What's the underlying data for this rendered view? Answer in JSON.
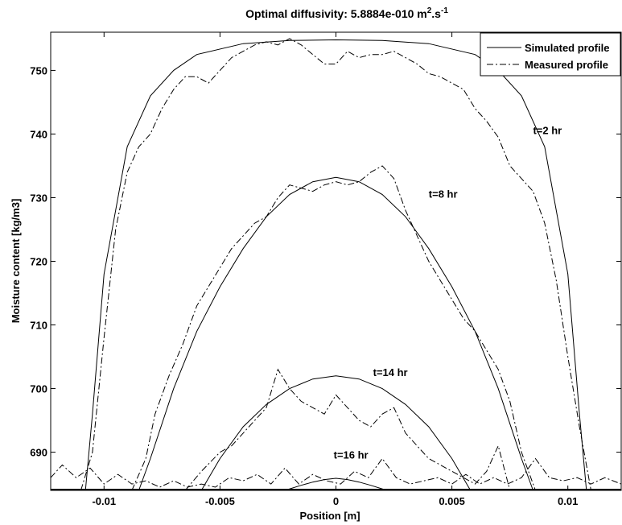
{
  "chart_data": {
    "type": "line",
    "title_prefix": "Optimal diffusivity: 5.8884e-010 m",
    "title_sup1": "2",
    "title_mid": ".s",
    "title_sup2": "-1",
    "xlabel": "Position [m]",
    "ylabel": "Moisture content [kg/m3]",
    "xlim": [
      -0.0123,
      0.0123
    ],
    "ylim": [
      684,
      756
    ],
    "xticks": [
      -0.01,
      -0.005,
      0,
      0.005,
      0.01
    ],
    "xtick_labels": [
      "-0.01",
      "-0.005",
      "0",
      "0.005",
      "0.01"
    ],
    "yticks": [
      690,
      700,
      710,
      720,
      730,
      740,
      750
    ],
    "ytick_labels": [
      "690",
      "700",
      "710",
      "720",
      "730",
      "740",
      "750"
    ],
    "grid": false,
    "legend_position": "top-right",
    "legend": [
      {
        "label": "Simulated profile",
        "style": "solid"
      },
      {
        "label": "Measured profile",
        "style": "dashdot"
      }
    ],
    "annotations": [
      {
        "text": "t=2 hr",
        "x": 0.0085,
        "y": 740
      },
      {
        "text": "t=8 hr",
        "x": 0.004,
        "y": 730
      },
      {
        "text": "t=14 hr",
        "x": 0.0016,
        "y": 702
      },
      {
        "text": "t=16 hr",
        "x": -0.0001,
        "y": 689
      }
    ],
    "series": [
      {
        "name": "Simulated profile",
        "style": "solid",
        "curves": [
          {
            "label": "t=2 hr",
            "x": [
              -0.0108,
              -0.0105,
              -0.01,
              -0.009,
              -0.008,
              -0.007,
              -0.006,
              -0.004,
              -0.002,
              0,
              0.002,
              0.004,
              0.006,
              0.007,
              0.008,
              0.009,
              0.01,
              0.0105,
              0.0108
            ],
            "y": [
              684,
              696,
              718,
              738,
              746,
              750,
              752.5,
              754.2,
              754.7,
              754.8,
              754.7,
              754.2,
              752.5,
              750,
              746,
              738,
              718,
              696,
              684
            ]
          },
          {
            "label": "t=8 hr",
            "x": [
              -0.0085,
              -0.008,
              -0.007,
              -0.006,
              -0.005,
              -0.004,
              -0.003,
              -0.002,
              -0.001,
              0,
              0.001,
              0.002,
              0.003,
              0.004,
              0.005,
              0.006,
              0.007,
              0.008,
              0.0085
            ],
            "y": [
              684,
              689,
              700,
              709,
              716,
              722,
              727,
              730.5,
              732.5,
              733.2,
              732.5,
              730.5,
              727,
              722,
              716,
              709,
              700,
              689,
              684
            ]
          },
          {
            "label": "t=14 hr",
            "x": [
              -0.0058,
              -0.005,
              -0.004,
              -0.003,
              -0.002,
              -0.001,
              0,
              0.001,
              0.002,
              0.003,
              0.004,
              0.005,
              0.0058
            ],
            "y": [
              684,
              689,
              694,
              697.5,
              700,
              701.5,
              702,
              701.5,
              700,
              697.5,
              694,
              689,
              684
            ]
          },
          {
            "label": "t=16 hr",
            "x": [
              -0.0022,
              -0.0015,
              -0.001,
              -0.0005,
              0,
              0.0005,
              0.001,
              0.0015,
              0.0022
            ],
            "y": [
              684,
              684.8,
              685.3,
              685.7,
              685.9,
              685.7,
              685.3,
              684.8,
              684
            ]
          }
        ]
      },
      {
        "name": "Measured profile",
        "style": "dashdot",
        "curves": [
          {
            "label": "t=2 hr",
            "x": [
              -0.011,
              -0.0105,
              -0.01,
              -0.0095,
              -0.009,
              -0.0085,
              -0.008,
              -0.0075,
              -0.007,
              -0.0065,
              -0.006,
              -0.0055,
              -0.005,
              -0.0045,
              -0.004,
              -0.0035,
              -0.003,
              -0.0025,
              -0.002,
              -0.0015,
              -0.001,
              -0.0005,
              0,
              0.0005,
              0.001,
              0.0015,
              0.002,
              0.0025,
              0.003,
              0.0035,
              0.004,
              0.0045,
              0.005,
              0.0055,
              0.006,
              0.0065,
              0.007,
              0.0075,
              0.008,
              0.0085,
              0.009,
              0.0095,
              0.01,
              0.0105,
              0.011
            ],
            "y": [
              684,
              690,
              708,
              725,
              734,
              738,
              740,
              744,
              747,
              749,
              749,
              748,
              750,
              752,
              753,
              754,
              754.5,
              754,
              755,
              754,
              752.5,
              751,
              751,
              753,
              752,
              752.5,
              752.5,
              753,
              752,
              751,
              749.5,
              749,
              748,
              747,
              744,
              742,
              739.5,
              735,
              733,
              731,
              726,
              717,
              705,
              694,
              684
            ]
          },
          {
            "label": "t=8 hr",
            "x": [
              -0.0088,
              -0.0082,
              -0.0078,
              -0.0072,
              -0.0066,
              -0.006,
              -0.0055,
              -0.005,
              -0.0045,
              -0.004,
              -0.0035,
              -0.003,
              -0.0025,
              -0.002,
              -0.0015,
              -0.001,
              -0.0005,
              0,
              0.0005,
              0.001,
              0.0015,
              0.002,
              0.0025,
              0.003,
              0.0035,
              0.004,
              0.0045,
              0.005,
              0.0055,
              0.006,
              0.0065,
              0.007,
              0.0075,
              0.008,
              0.0086
            ],
            "y": [
              684,
              689,
              696,
              702,
              707,
              713,
              716,
              719,
              722,
              724,
              726,
              727,
              730,
              732,
              731.5,
              731,
              732,
              732.5,
              732,
              732.5,
              734,
              735,
              733,
              728,
              724,
              720,
              717,
              714,
              711,
              709,
              706,
              703,
              698,
              690,
              684
            ]
          },
          {
            "label": "t=14 hr",
            "x": [
              -0.0065,
              -0.0058,
              -0.005,
              -0.0045,
              -0.004,
              -0.0035,
              -0.003,
              -0.0025,
              -0.002,
              -0.0015,
              -0.001,
              -0.0005,
              0,
              0.0005,
              0.001,
              0.0015,
              0.002,
              0.0025,
              0.003,
              0.0035,
              0.004,
              0.0045,
              0.005,
              0.0055,
              0.006,
              0.0065,
              0.007,
              0.0075
            ],
            "y": [
              684,
              687,
              690,
              691,
              693,
              695,
              697,
              703,
              700,
              698,
              697,
              696,
              699,
              697,
              695,
              694,
              696,
              697,
              693,
              691,
              689,
              688,
              687,
              686,
              685,
              687,
              691,
              684
            ]
          },
          {
            "label": "t=16 hr",
            "x": [
              -0.0123,
              -0.0118,
              -0.0112,
              -0.0106,
              -0.01,
              -0.0094,
              -0.0088,
              -0.0082,
              -0.0076,
              -0.007,
              -0.0064,
              -0.0058,
              -0.0052,
              -0.0046,
              -0.004,
              -0.0034,
              -0.0028,
              -0.0022,
              -0.0016,
              -0.001,
              -0.0004,
              0.0002,
              0.0008,
              0.0014,
              0.002,
              0.0026,
              0.0032,
              0.0038,
              0.0044,
              0.005,
              0.0056,
              0.0062,
              0.0068,
              0.0074,
              0.008,
              0.0086,
              0.0092,
              0.0098,
              0.0104,
              0.011,
              0.0116,
              0.0123
            ],
            "y": [
              686,
              688,
              686,
              687.5,
              685,
              686.5,
              685,
              685.5,
              684.5,
              685.5,
              684.5,
              685,
              684.5,
              686,
              685.5,
              686.5,
              685,
              687.5,
              685,
              686.5,
              685.5,
              685,
              687,
              686,
              689,
              686,
              685,
              685.5,
              686,
              685,
              686.5,
              685,
              686,
              685,
              686,
              689,
              686,
              685.5,
              686,
              685,
              686,
              685
            ]
          }
        ]
      }
    ]
  }
}
